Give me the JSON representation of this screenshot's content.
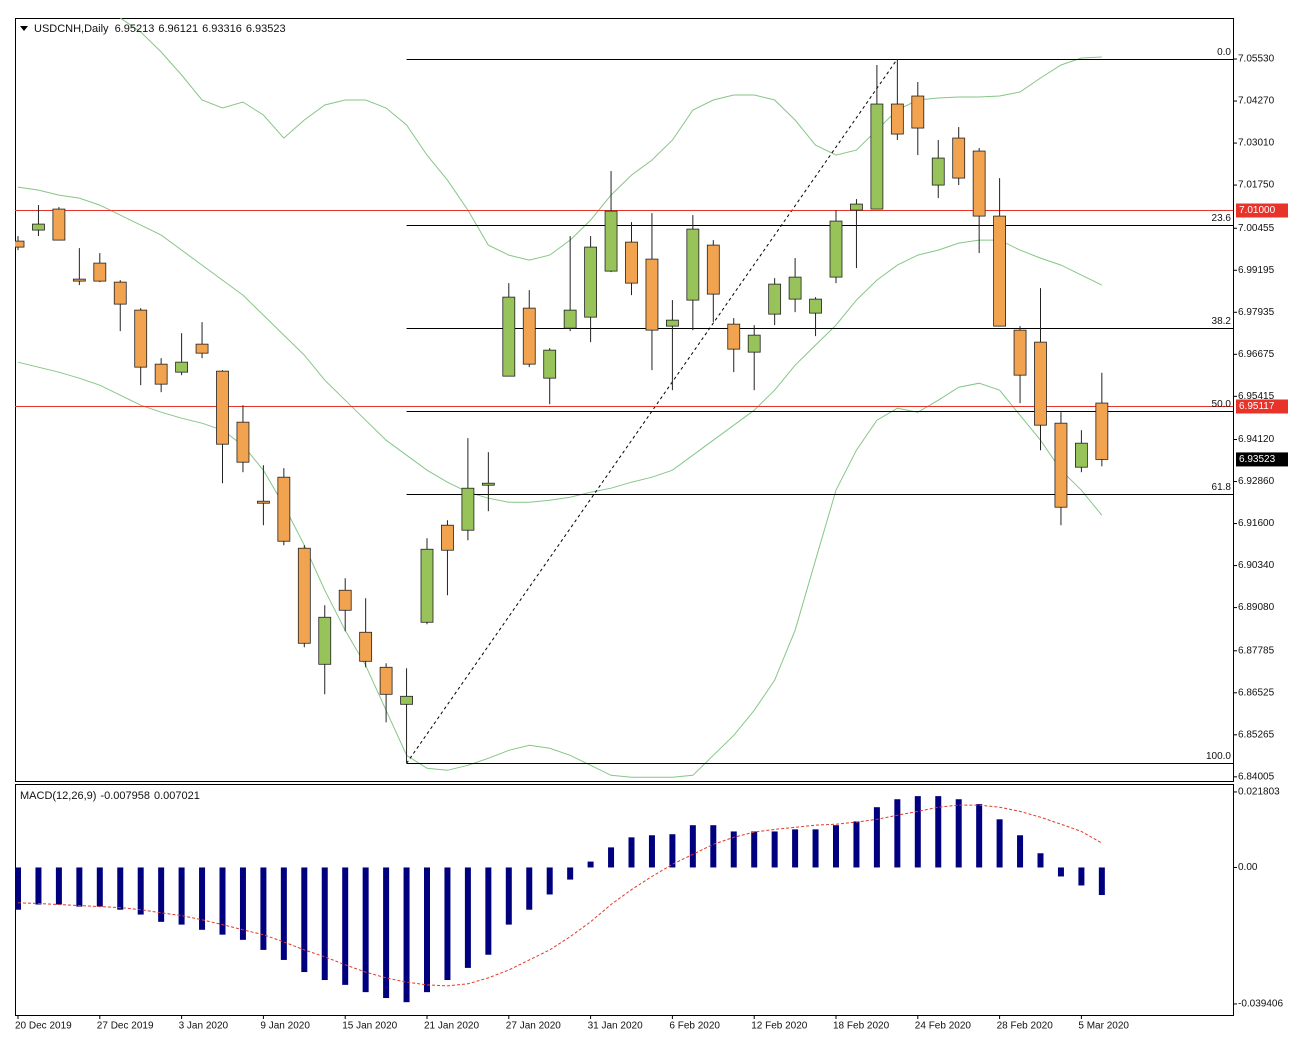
{
  "chart_data": {
    "type": "candlestick",
    "title": "USDCNH,Daily",
    "categories": [
      "20 Dec 2019",
      null,
      null,
      null,
      "27 Dec 2019",
      null,
      null,
      null,
      "3 Jan 2020",
      null,
      null,
      null,
      "9 Jan 2020",
      null,
      null,
      null,
      "15 Jan 2020",
      null,
      null,
      null,
      "21 Jan 2020",
      null,
      null,
      null,
      "27 Jan 2020",
      null,
      null,
      null,
      "31 Jan 2020",
      null,
      null,
      null,
      "6 Feb 2020",
      null,
      null,
      null,
      "12 Feb 2020",
      null,
      null,
      null,
      "18 Feb 2020",
      null,
      null,
      null,
      "24 Feb 2020",
      null,
      null,
      null,
      "28 Feb 2020",
      null,
      null,
      null,
      "5 Mar 2020",
      null
    ],
    "open": [
      7.0007,
      7.004,
      7.0103,
      6.9893,
      6.9941,
      6.9884,
      6.98,
      6.9638,
      6.9614,
      6.9698,
      6.9617,
      6.9464,
      6.9227,
      6.9299,
      6.9086,
      6.8738,
      6.896,
      6.8834,
      6.8729,
      6.8618,
      6.8864,
      6.9155,
      6.914,
      6.9275,
      6.9602,
      6.9806,
      6.9596,
      6.9746,
      6.9779,
      6.9917,
      7.0004,
      6.9953,
      6.9752,
      6.983,
      6.9995,
      6.9758,
      6.9674,
      6.9788,
      6.9833,
      6.9791,
      6.9899,
      7.01,
      7.0103,
      7.0418,
      7.0442,
      7.0175,
      7.0316,
      7.0277,
      7.0082,
      6.974,
      6.9704,
      6.9461,
      6.9329,
      6.95213
    ],
    "high": [
      7.0022,
      7.0115,
      7.0109,
      6.9986,
      6.9971,
      6.989,
      6.9806,
      6.9656,
      6.9731,
      6.9764,
      6.962,
      6.9515,
      6.9335,
      6.9326,
      6.9095,
      6.8915,
      6.8996,
      6.8936,
      6.8741,
      6.8726,
      6.9116,
      6.917,
      6.9416,
      6.9374,
      6.9881,
      6.986,
      6.9686,
      7.0022,
      7.0022,
      7.0217,
      7.0064,
      7.0091,
      6.983,
      7.0085,
      7.001,
      6.9776,
      6.9755,
      6.9896,
      6.9956,
      6.9839,
      7.01,
      7.0133,
      7.0535,
      7.0553,
      7.0484,
      7.031,
      7.0349,
      7.0286,
      7.0196,
      6.9752,
      6.9866,
      6.9494,
      6.944,
      6.96121
    ],
    "low": [
      6.998,
      7.0022,
      7.001,
      6.9875,
      6.9884,
      6.9737,
      6.9575,
      6.9554,
      6.9605,
      6.9656,
      6.9281,
      6.9314,
      6.9155,
      6.9095,
      6.8789,
      6.8648,
      6.8837,
      6.8729,
      6.8564,
      6.8441,
      6.8858,
      6.8945,
      6.911,
      6.9197,
      6.9602,
      6.9629,
      6.9518,
      6.9737,
      6.9704,
      6.9914,
      6.9845,
      6.962,
      6.956,
      6.974,
      6.9764,
      6.9614,
      6.956,
      6.9755,
      6.9794,
      6.9722,
      6.9881,
      6.9926,
      7.0103,
      7.031,
      7.0265,
      7.0136,
      7.0175,
      6.9971,
      6.9752,
      6.9521,
      6.938,
      6.9155,
      6.9314,
      6.93316
    ],
    "close": [
      6.9989,
      7.0058,
      7.001,
      6.9887,
      6.9887,
      6.9818,
      6.9629,
      6.9578,
      6.9644,
      6.9671,
      6.9398,
      6.9344,
      6.9221,
      6.9107,
      6.8801,
      6.8879,
      6.89,
      6.8747,
      6.8648,
      6.8642,
      6.9083,
      6.908,
      6.9266,
      6.9281,
      6.9839,
      6.9638,
      6.968,
      6.98,
      6.9989,
      7.0097,
      6.9881,
      6.974,
      6.977,
      7.0043,
      6.9848,
      6.9683,
      6.9725,
      6.9878,
      6.9899,
      6.9833,
      7.0067,
      7.0118,
      7.0418,
      7.0328,
      7.0346,
      7.0256,
      7.0196,
      7.0082,
      6.9752,
      6.9605,
      6.9455,
      6.9209,
      6.9401,
      6.93523
    ],
    "bull_color": "#98c35a",
    "bear_color": "#f2a34f",
    "ylim": [
      6.8388,
      7.0676
    ],
    "yticks": [
      {
        "value": 7.0553,
        "label": "7.05530"
      },
      {
        "value": 7.0427,
        "label": "7.04270"
      },
      {
        "value": 7.0301,
        "label": "7.03010"
      },
      {
        "value": 7.0175,
        "label": "7.01750"
      },
      7.00455,
      6.99195,
      6.97935,
      6.96675,
      6.95415,
      {
        "value": 6.9412,
        "label": "6.94120"
      },
      {
        "value": 6.9286,
        "label": "6.92860"
      },
      {
        "value": 6.916,
        "label": "6.91600"
      },
      {
        "value": 6.9034,
        "label": "6.90340"
      },
      {
        "value": 6.8908,
        "label": "6.89080"
      },
      6.87785,
      6.86525,
      6.85265,
      6.84005
    ],
    "bands": {
      "color": "#86c686",
      "upper": [
        null,
        null,
        null,
        null,
        null,
        7.0676,
        7.0634,
        7.0574,
        7.0505,
        7.043,
        7.0406,
        7.0424,
        7.0385,
        7.0316,
        7.037,
        7.0415,
        7.043,
        7.043,
        7.0406,
        7.0355,
        7.0265,
        7.019,
        7.01,
        6.9995,
        6.9965,
        6.995,
        6.9965,
        7.001,
        7.007,
        7.0145,
        7.0205,
        7.025,
        7.031,
        7.04,
        7.043,
        7.0445,
        7.0445,
        7.043,
        7.037,
        7.0295,
        7.0265,
        7.028,
        7.034,
        7.04,
        7.043,
        7.0436,
        7.0439,
        7.0439,
        7.0442,
        7.0454,
        7.0496,
        7.0535,
        7.0556,
        7.0559
      ],
      "middle": [
        7.0169,
        7.016,
        7.0145,
        7.0136,
        7.0115,
        7.0085,
        7.0055,
        7.0025,
        6.998,
        6.9935,
        6.989,
        6.9845,
        6.9785,
        6.9725,
        6.9665,
        6.959,
        6.953,
        6.947,
        6.941,
        6.9365,
        6.932,
        6.9284,
        6.9254,
        6.9236,
        6.9224,
        6.9224,
        6.923,
        6.9239,
        6.9254,
        6.9266,
        6.9284,
        6.9299,
        6.932,
        6.9365,
        6.941,
        6.9455,
        6.95,
        6.956,
        6.9635,
        6.9695,
        6.9755,
        6.983,
        6.989,
        6.9935,
        6.9965,
        6.998,
        7.0001,
        7.001,
        7.001,
        6.998,
        6.9956,
        6.9935,
        6.9905,
        6.9875
      ],
      "lower": [
        6.9644,
        6.9629,
        6.9614,
        6.9596,
        6.9575,
        6.9545,
        6.9515,
        6.9494,
        6.9476,
        6.9461,
        6.944,
        6.9395,
        6.932,
        6.9215,
        6.9095,
        6.896,
        6.884,
        6.8735,
        6.86,
        6.8465,
        6.8426,
        6.842,
        6.8435,
        6.8456,
        6.848,
        6.8495,
        6.8486,
        6.8465,
        6.8435,
        6.8405,
        6.8399,
        6.8399,
        6.8399,
        6.8405,
        6.8465,
        6.8525,
        6.86,
        6.869,
        6.884,
        6.905,
        6.926,
        6.938,
        6.947,
        6.9506,
        6.9494,
        6.953,
        6.9569,
        6.9581,
        6.956,
        6.9485,
        6.941,
        6.932,
        6.926,
        6.9185
      ]
    },
    "hlines": {
      "color": "#e8332a",
      "levels": [
        {
          "value": 7.01,
          "label": "7.01000"
        },
        6.95117
      ]
    },
    "fibonacci": {
      "from_bar": 19,
      "to_bar": 43,
      "levels": [
        {
          "value": 0,
          "label": "0.0"
        },
        23.6,
        38.2,
        {
          "value": 50,
          "label": "50.0"
        },
        61.8,
        {
          "value": 100,
          "label": "100.0"
        }
      ]
    },
    "macd": {
      "title": "MACD(12,26,9)",
      "color": "#00007f",
      "signal_color": "#e03a2c",
      "ylim": [
        -0.0426,
        0.0241
      ],
      "yticks": [
        0.021803,
        {
          "value": 0,
          "label": "0.00"
        },
        -0.039406
      ],
      "histogram": [
        -0.0122,
        -0.0107,
        -0.0107,
        -0.0113,
        -0.0113,
        -0.0122,
        -0.0136,
        -0.0157,
        -0.0165,
        -0.018,
        -0.0194,
        -0.0209,
        -0.0238,
        -0.0267,
        -0.0302,
        -0.0325,
        -0.0339,
        -0.036,
        -0.0377,
        -0.0389,
        -0.036,
        -0.0325,
        -0.029,
        -0.0252,
        -0.0165,
        -0.0122,
        -0.0078,
        -0.0035,
        0.0017,
        0.0058,
        0.0087,
        0.0093,
        0.0096,
        0.0122,
        0.0122,
        0.0104,
        0.0104,
        0.0104,
        0.011,
        0.011,
        0.0122,
        0.0133,
        0.0174,
        0.0197,
        0.0206,
        0.0206,
        0.0197,
        0.0183,
        0.0139,
        0.0093,
        0.0041,
        -0.0026,
        -0.0052,
        -0.007958
      ],
      "signal": [
        -0.0102,
        -0.0104,
        -0.0107,
        -0.011,
        -0.0113,
        -0.0116,
        -0.0122,
        -0.0131,
        -0.0139,
        -0.0151,
        -0.0165,
        -0.018,
        -0.0194,
        -0.0215,
        -0.0238,
        -0.0258,
        -0.0281,
        -0.0302,
        -0.0319,
        -0.0331,
        -0.0339,
        -0.0342,
        -0.0336,
        -0.0319,
        -0.0296,
        -0.0267,
        -0.0238,
        -0.02,
        -0.0157,
        -0.0107,
        -0.0064,
        -0.0026,
        0.0009,
        0.0038,
        0.0067,
        0.0087,
        0.0102,
        0.011,
        0.0116,
        0.0122,
        0.0125,
        0.0131,
        0.0139,
        0.0151,
        0.0162,
        0.0174,
        0.018,
        0.018,
        0.0174,
        0.0162,
        0.0145,
        0.0125,
        0.0104,
        0.007021
      ]
    }
  }
}
